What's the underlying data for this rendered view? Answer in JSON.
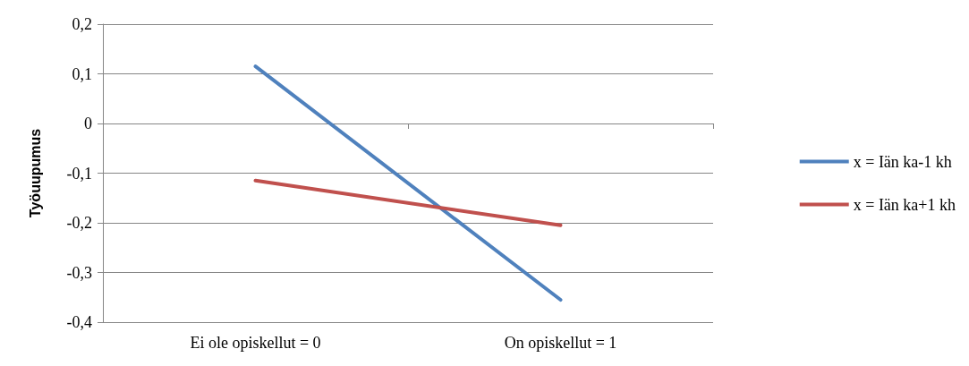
{
  "chart_data": {
    "type": "line",
    "ylabel": "Työuupumus",
    "categories": [
      "Ei ole opiskellut = 0",
      "On opiskellut = 1"
    ],
    "series": [
      {
        "name": "x = Iän ka-1 kh",
        "color": "#4f81bd",
        "values": [
          0.115,
          -0.355
        ]
      },
      {
        "name": "x = Iän ka+1 kh",
        "color": "#c0504d",
        "values": [
          -0.115,
          -0.205
        ]
      }
    ],
    "ylim": [
      -0.4,
      0.2
    ],
    "yticks": [
      {
        "value": -0.4,
        "label": "-0,4"
      },
      {
        "value": -0.3,
        "label": "-0,3"
      },
      {
        "value": -0.2,
        "label": "-0,2"
      },
      {
        "value": -0.1,
        "label": "-0,1"
      },
      {
        "value": 0,
        "label": "0"
      },
      {
        "value": 0.1,
        "label": "0,1"
      },
      {
        "value": 0.2,
        "label": "0,2"
      }
    ],
    "grid": "y",
    "legend": "right",
    "marker": "none",
    "line_style": "solid"
  }
}
